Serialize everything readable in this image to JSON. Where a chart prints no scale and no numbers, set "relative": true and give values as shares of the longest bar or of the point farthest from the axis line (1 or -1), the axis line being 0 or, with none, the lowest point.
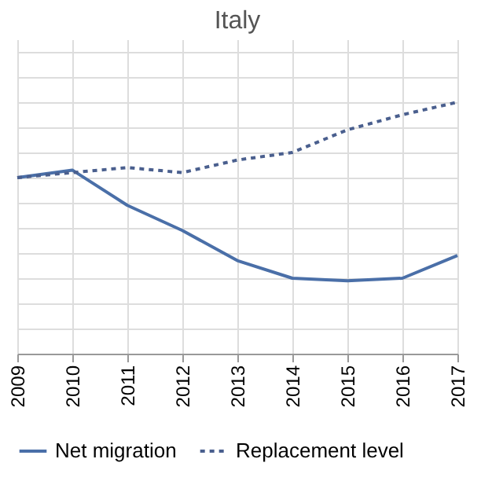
{
  "chart_data": {
    "type": "line",
    "title": "Italy",
    "relative": true,
    "grid": true,
    "legend": "bottom",
    "categories": [
      "2009",
      "2010",
      "2011",
      "2012",
      "2013",
      "2014",
      "2015",
      "2016",
      "2017"
    ],
    "series": [
      {
        "name": "Net migration",
        "color": "#4a6fa8",
        "line_style": "solid",
        "values": [
          0.7,
          0.73,
          0.59,
          0.49,
          0.37,
          0.3,
          0.29,
          0.3,
          0.39
        ]
      },
      {
        "name": "Replacement level",
        "color": "#4a5f8e",
        "line_style": "dotted",
        "values": [
          0.7,
          0.72,
          0.74,
          0.72,
          0.77,
          0.8,
          0.89,
          0.95,
          1.0
        ]
      }
    ]
  }
}
